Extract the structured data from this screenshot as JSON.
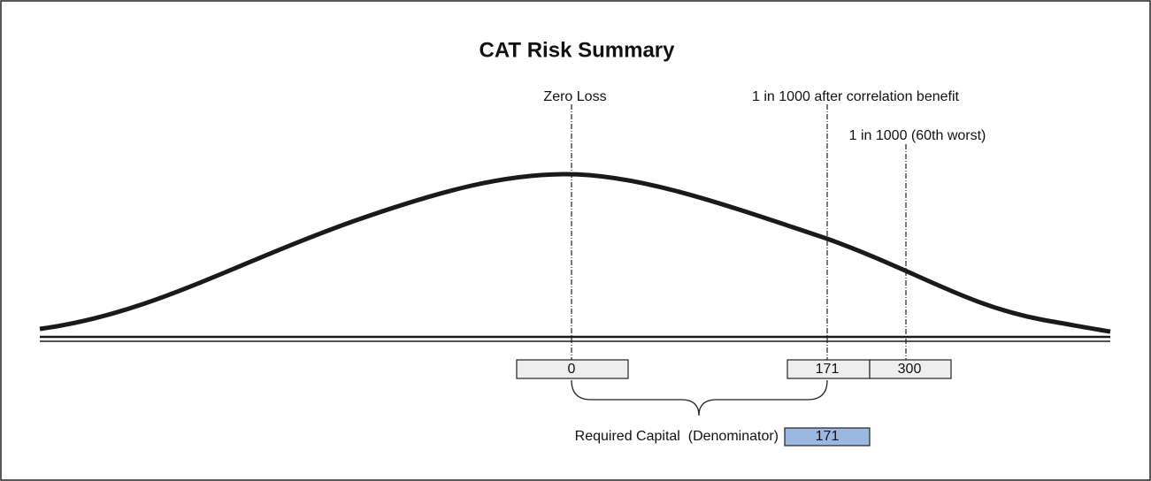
{
  "title": "CAT Risk Summary",
  "markers": [
    {
      "label": "Zero Loss",
      "value": 0
    },
    {
      "label": "1 in 1000 after correlation benefit",
      "value": 171
    },
    {
      "label": "1 in 1000 (60th worst)",
      "value": 300
    }
  ],
  "required_capital": {
    "label": "Required Capital  (Denominator)",
    "value": 171
  }
}
